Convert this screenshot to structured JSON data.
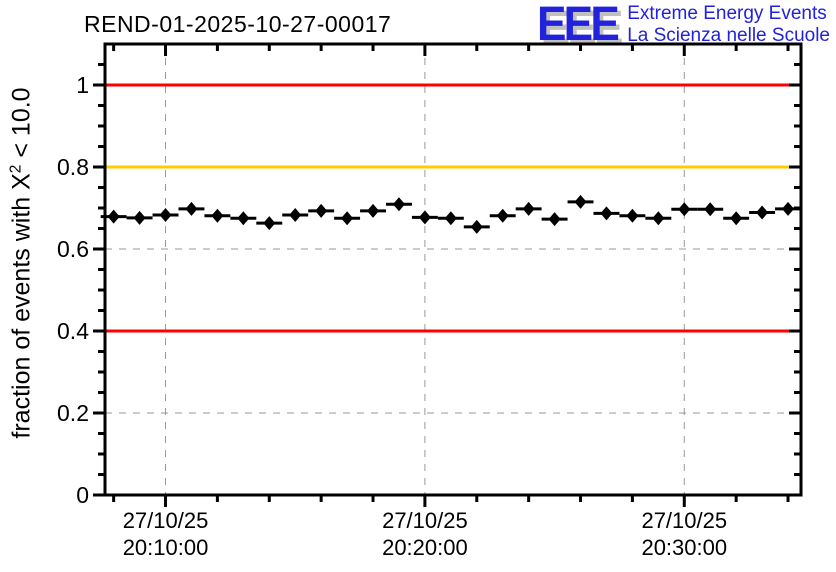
{
  "title": "REND-01-2025-10-27-00017",
  "logo": {
    "acronym": "EEE",
    "line1": "Extreme Energy Events",
    "line2": "La Scienza nelle Scuole",
    "color": "#2222dd",
    "shadow": "#c0c0c0"
  },
  "colors": {
    "alarm_red": "#ff0000",
    "warning_orange": "#ffcc00",
    "grid_gray": "#999999",
    "marker_black": "#000000"
  },
  "chart_data": {
    "type": "scatter",
    "title": "REND-01-2025-10-27-00017",
    "xlabel": "",
    "ylabel": "fraction of events with X^2 < 10.0",
    "ylabel_parts": {
      "pre": "fraction of events with X",
      "sup": "2",
      "post": " < 10.0"
    },
    "x_type": "time",
    "x_range": [
      "20:07:40",
      "20:34:30"
    ],
    "ylim": [
      0,
      1.1
    ],
    "grid": true,
    "grid_color": "#999999",
    "legend": "none",
    "y_major_ticks": [
      0,
      0.2,
      0.4,
      0.6,
      0.8,
      1
    ],
    "y_major_labels": [
      "0",
      "0.2",
      "0.4",
      "0.6",
      "0.8",
      "1"
    ],
    "y_minor_step": 0.05,
    "x_major_ticks": [
      "20:10:00",
      "20:20:00",
      "20:30:00"
    ],
    "x_major_labels": [
      [
        "27/10/25",
        "20:10:00"
      ],
      [
        "27/10/25",
        "20:20:00"
      ],
      [
        "27/10/25",
        "20:30:00"
      ]
    ],
    "x_minor_step_s": 120,
    "reference_lines": [
      {
        "y": 1.0,
        "color": "#ff0000"
      },
      {
        "y": 0.8,
        "color": "#ffcc00"
      },
      {
        "y": 0.4,
        "color": "#ff0000"
      }
    ],
    "series": [
      {
        "name": "fraction of events with chi2 < 10",
        "marker": "diamond",
        "color": "#000000",
        "x_error_s": 30,
        "points": [
          {
            "t": "20:08:00",
            "y": 0.679
          },
          {
            "t": "20:09:00",
            "y": 0.676
          },
          {
            "t": "20:10:00",
            "y": 0.683
          },
          {
            "t": "20:11:00",
            "y": 0.698
          },
          {
            "t": "20:12:00",
            "y": 0.681
          },
          {
            "t": "20:13:00",
            "y": 0.675
          },
          {
            "t": "20:14:00",
            "y": 0.663
          },
          {
            "t": "20:15:00",
            "y": 0.683
          },
          {
            "t": "20:16:00",
            "y": 0.693
          },
          {
            "t": "20:17:00",
            "y": 0.675
          },
          {
            "t": "20:18:00",
            "y": 0.693
          },
          {
            "t": "20:19:00",
            "y": 0.709
          },
          {
            "t": "20:20:00",
            "y": 0.677
          },
          {
            "t": "20:21:00",
            "y": 0.675
          },
          {
            "t": "20:22:00",
            "y": 0.654
          },
          {
            "t": "20:23:00",
            "y": 0.681
          },
          {
            "t": "20:24:00",
            "y": 0.698
          },
          {
            "t": "20:25:00",
            "y": 0.673
          },
          {
            "t": "20:26:00",
            "y": 0.715
          },
          {
            "t": "20:27:00",
            "y": 0.687
          },
          {
            "t": "20:28:00",
            "y": 0.681
          },
          {
            "t": "20:29:00",
            "y": 0.675
          },
          {
            "t": "20:30:00",
            "y": 0.697
          },
          {
            "t": "20:31:00",
            "y": 0.697
          },
          {
            "t": "20:32:00",
            "y": 0.675
          },
          {
            "t": "20:33:00",
            "y": 0.689
          },
          {
            "t": "20:34:00",
            "y": 0.698
          }
        ]
      }
    ]
  }
}
